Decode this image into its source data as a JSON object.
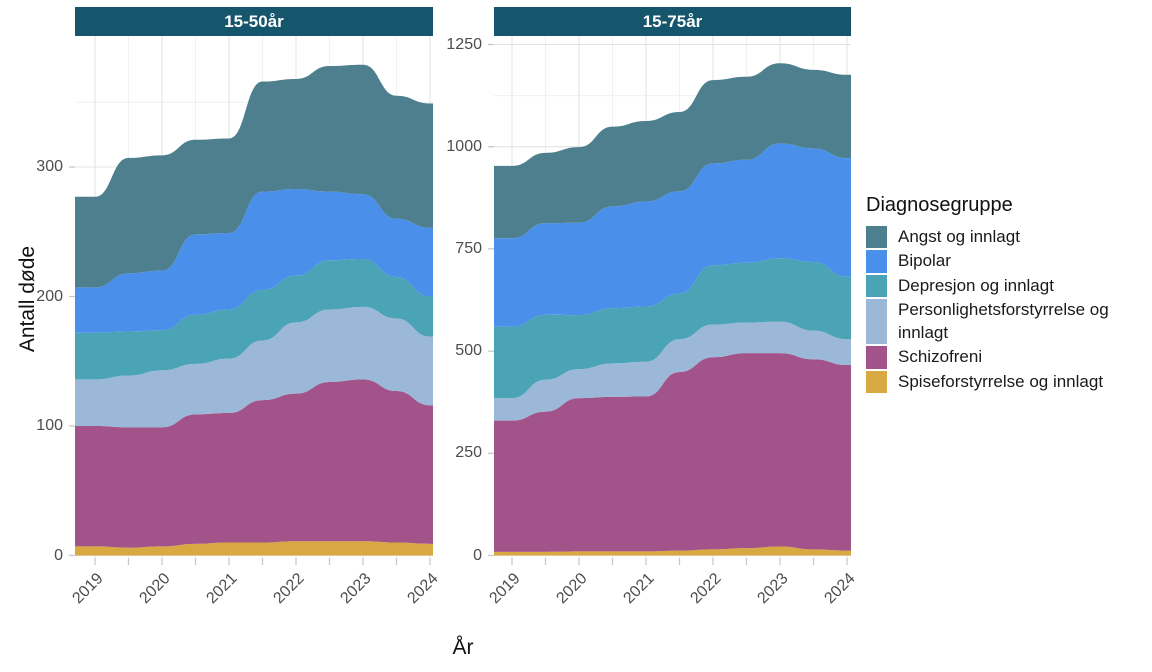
{
  "figure": {
    "y_axis_title": "Antall døde",
    "x_axis_title": "År"
  },
  "chart_data": {
    "type": "area",
    "stacked": true,
    "title": "",
    "xlabel": "År",
    "ylabel": "Antall døde",
    "legend_title": "Diagnosegruppe",
    "legend_position": "right",
    "grid": true,
    "x": [
      2019,
      2019.5,
      2020,
      2020.5,
      2021,
      2021.5,
      2022,
      2022.5,
      2023,
      2023.5,
      2024
    ],
    "x_tick_labels": [
      "2019",
      "2020",
      "2021",
      "2022",
      "2023",
      "2024"
    ],
    "stack_order_bottom_to_top": [
      "Spiseforstyrrelse og innlagt",
      "Schizofreni",
      "Personlighetsforstyrrelse og innlagt",
      "Depresjon og innlagt",
      "Bipolar",
      "Angst og innlagt"
    ],
    "panels": [
      {
        "label": "15-50år",
        "ylim": [
          0,
          401
        ],
        "yticks": [
          0,
          100,
          200,
          300
        ],
        "series": [
          {
            "name": "Angst og innlagt",
            "color": "#4e7f8e",
            "values": [
              70,
              89,
              89,
              73,
              73,
              85,
              85,
              97,
              100,
              95,
              96
            ]
          },
          {
            "name": "Bipolar",
            "color": "#4a90ea",
            "values": [
              35,
              45,
              46,
              62,
              59,
              76,
              67,
              53,
              50,
              45,
              53
            ]
          },
          {
            "name": "Depresjon og innlagt",
            "color": "#4ba3b6",
            "values": [
              36,
              34,
              31,
              38,
              38,
              39,
              36,
              38,
              37,
              32,
              31
            ]
          },
          {
            "name": "Personlighetsforstyrrelse og innlagt",
            "color": "#9cb8d9",
            "values": [
              36,
              40,
              44,
              39,
              42,
              46,
              55,
              56,
              56,
              56,
              53
            ]
          },
          {
            "name": "Schizofreni",
            "color": "#a2548a",
            "values": [
              93,
              93,
              92,
              100,
              100,
              110,
              114,
              123,
              125,
              117,
              107
            ]
          },
          {
            "name": "Spiseforstyrrelse og innlagt",
            "color": "#d8a942",
            "values": [
              7,
              6,
              7,
              9,
              10,
              10,
              11,
              11,
              11,
              10,
              9
            ]
          }
        ]
      },
      {
        "label": "15-75år",
        "ylim": [
          0,
          1271
        ],
        "yticks": [
          0,
          250,
          500,
          750,
          1000,
          1250
        ],
        "series": [
          {
            "name": "Angst og innlagt",
            "color": "#4e7f8e",
            "values": [
              177,
              172,
              185,
              195,
              197,
              194,
              204,
              203,
              196,
              192,
              204
            ]
          },
          {
            "name": "Bipolar",
            "color": "#4a90ea",
            "values": [
              216,
              224,
              226,
              249,
              257,
              250,
              249,
              252,
              281,
              278,
              290
            ]
          },
          {
            "name": "Depresjon og innlagt",
            "color": "#4ba3b6",
            "values": [
              175,
              159,
              132,
              135,
              135,
              112,
              145,
              146,
              155,
              168,
              153
            ]
          },
          {
            "name": "Personlighetsforstyrrelse og innlagt",
            "color": "#9cb8d9",
            "values": [
              55,
              78,
              71,
              82,
              85,
              80,
              80,
              75,
              77,
              70,
              63
            ]
          },
          {
            "name": "Schizofreni",
            "color": "#a2548a",
            "values": [
              321,
              343,
              375,
              378,
              379,
              437,
              470,
              477,
              473,
              465,
              454
            ]
          },
          {
            "name": "Spiseforstyrrelse og innlagt",
            "color": "#d8a942",
            "values": [
              9,
              9,
              10,
              10,
              10,
              12,
              15,
              18,
              22,
              15,
              12
            ]
          }
        ]
      }
    ],
    "colors": {
      "facet_strip_background": "#15566c",
      "facet_strip_text": "#ffffff",
      "grid_major": "#e3e3e3",
      "grid_minor": "#f0f0f0",
      "tick_text": "#4d4d4d",
      "tick_mark": "#c8c8c8"
    }
  }
}
